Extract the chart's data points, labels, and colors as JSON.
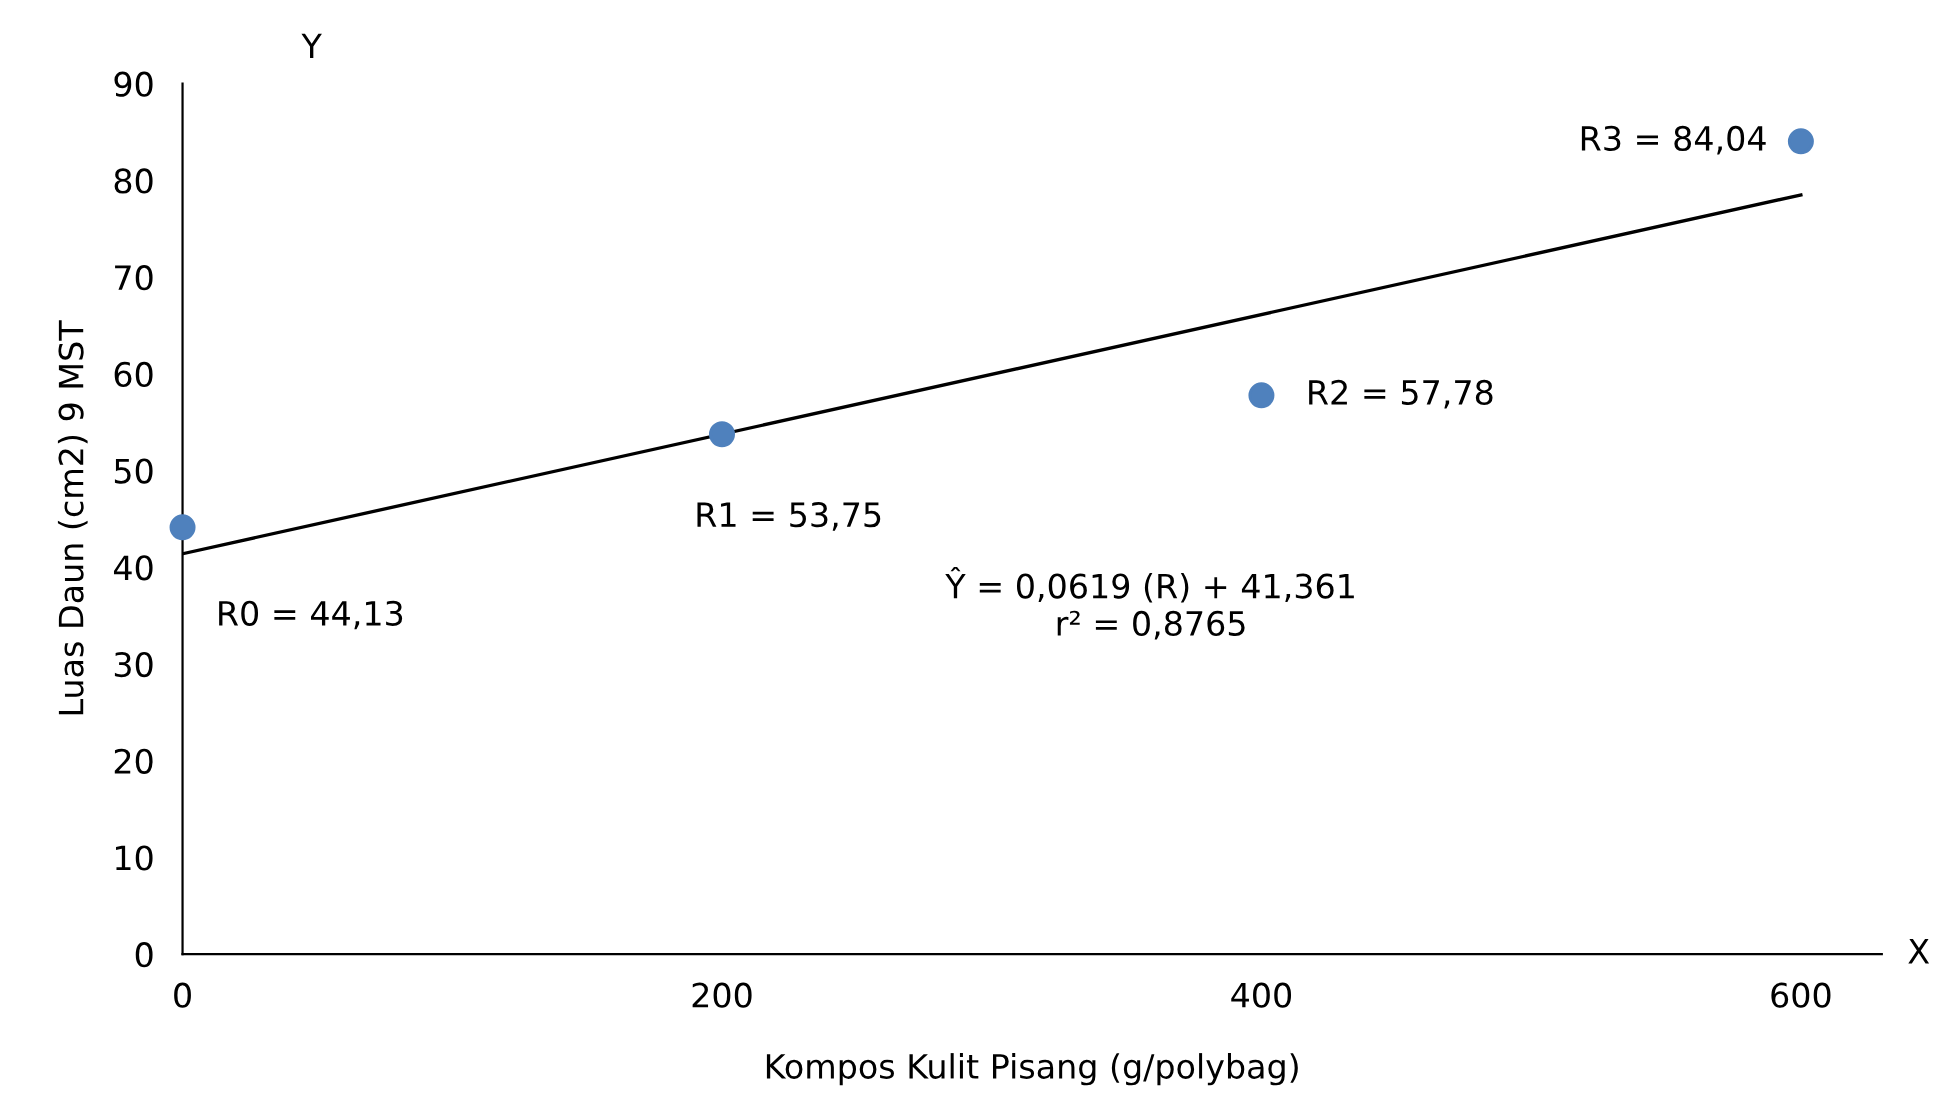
{
  "chart_data": {
    "type": "scatter",
    "xlabel": "Kompos Kulit Pisang (g/polybag)",
    "ylabel": "Luas Daun (cm2) 9 MST",
    "x": [
      0,
      200,
      400,
      600
    ],
    "series": [
      {
        "color": "#4f81bd",
        "values": [
          44.13,
          53.75,
          57.78,
          84.04
        ],
        "marker": "circle"
      },
      {
        "type": "line",
        "color": "#000000",
        "x": [
          0,
          600
        ],
        "values": [
          41.4,
          78.5
        ],
        "marker": "none",
        "line_style": "solid"
      }
    ],
    "xlim": [
      0,
      630
    ],
    "ylim": [
      0,
      90
    ],
    "xticks": [
      0,
      200,
      400,
      600
    ],
    "yticks": [
      0,
      10,
      20,
      30,
      40,
      50,
      60,
      70,
      80,
      90
    ],
    "grid": false,
    "legend": false,
    "annotations": [
      {
        "text": "R0 = 44,13",
        "x": 0,
        "y": 44.13
      },
      {
        "text": "R1 = 53,75",
        "x": 200,
        "y": 53.75
      },
      {
        "text": "R2 = 57,78",
        "x": 400,
        "y": 57.78
      },
      {
        "text": "R3 = 84,04",
        "x": 600,
        "y": 84.04
      },
      "Ŷ = 0,0619 (R) + 41,361\nr² = 0,8765",
      "Y",
      "X"
    ]
  }
}
